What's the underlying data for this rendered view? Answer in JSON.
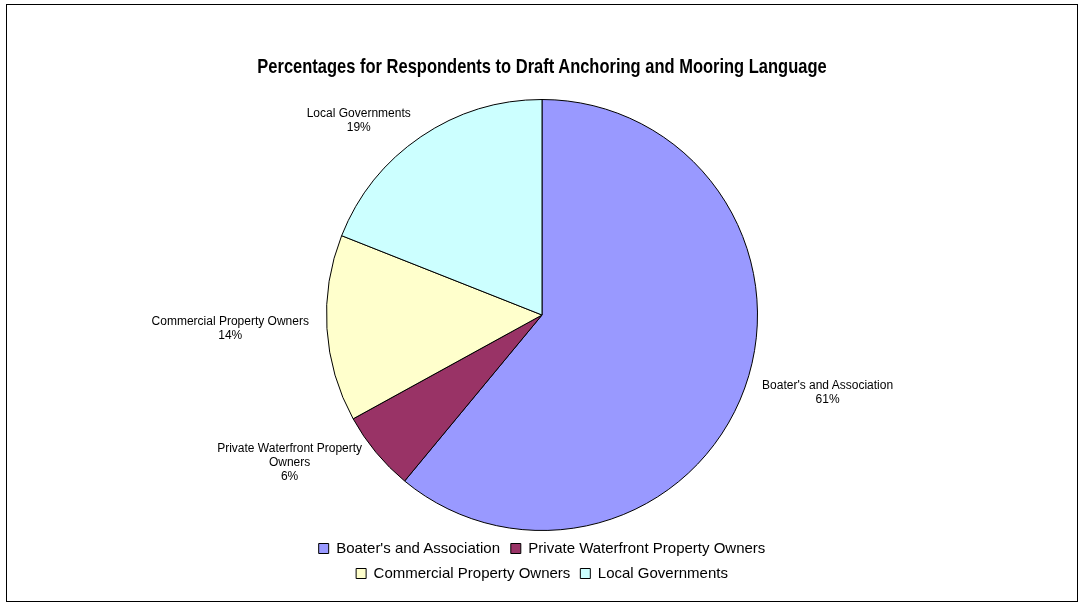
{
  "chart_data": {
    "type": "pie",
    "title": "Percentages for Respondents to Draft Anchoring and Mooring Language",
    "categories": [
      "Boater's and Association",
      "Private Waterfront Property Owners",
      "Commercial Property Owners",
      "Local Governments"
    ],
    "values": [
      61,
      6,
      14,
      19
    ],
    "colors": [
      "#9999ff",
      "#993366",
      "#ffffcc",
      "#ccffff"
    ],
    "value_labels": [
      "61%",
      "6%",
      "14%",
      "19%"
    ],
    "legend": "bottom"
  }
}
